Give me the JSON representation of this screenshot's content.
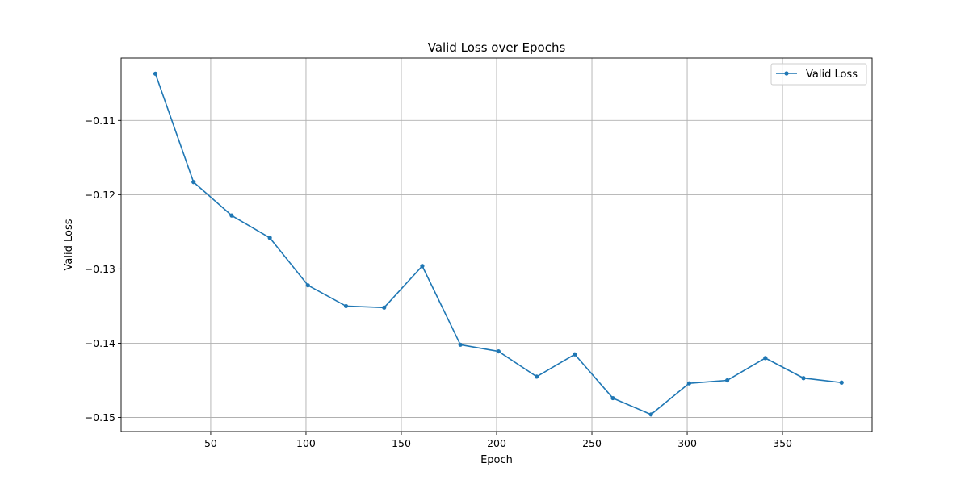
{
  "chart_data": {
    "type": "line",
    "title": "Valid Loss over Epochs",
    "xlabel": "Epoch",
    "ylabel": "Valid Loss",
    "xlim": [
      3,
      397
    ],
    "ylim": [
      -0.1519,
      -0.1016
    ],
    "xticks": [
      50,
      100,
      150,
      200,
      250,
      300,
      350
    ],
    "xtick_labels": [
      "50",
      "100",
      "150",
      "200",
      "250",
      "300",
      "350"
    ],
    "yticks": [
      -0.11,
      -0.12,
      -0.13,
      -0.14,
      -0.15
    ],
    "ytick_labels": [
      "−0.11",
      "−0.12",
      "−0.13",
      "−0.14",
      "−0.15"
    ],
    "grid": true,
    "legend_position": "top-right",
    "series": [
      {
        "name": "Valid Loss",
        "color": "#1f77b4",
        "marker": "circle",
        "x": [
          21,
          41,
          61,
          81,
          101,
          121,
          141,
          161,
          181,
          201,
          221,
          241,
          261,
          281,
          301,
          321,
          341,
          361,
          381
        ],
        "y": [
          -0.1037,
          -0.1183,
          -0.1228,
          -0.1258,
          -0.1322,
          -0.135,
          -0.1352,
          -0.1296,
          -0.1402,
          -0.1411,
          -0.1445,
          -0.1415,
          -0.1474,
          -0.1496,
          -0.1454,
          -0.145,
          -0.142,
          -0.1447,
          -0.1453
        ]
      }
    ]
  }
}
